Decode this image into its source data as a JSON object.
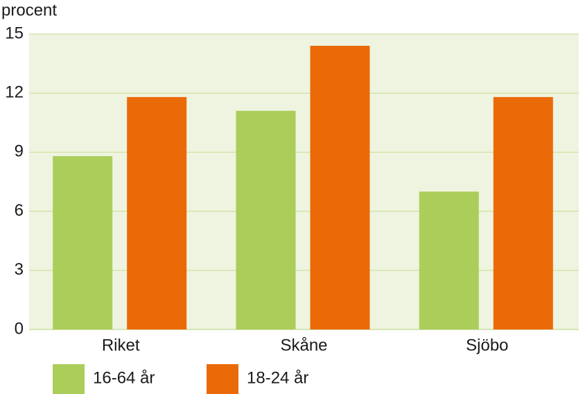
{
  "chart_data": {
    "type": "bar",
    "y_label": "procent",
    "categories": [
      "Riket",
      "Skåne",
      "Sjöbo"
    ],
    "series": [
      {
        "name": "16-64 år",
        "color": "#abcd5a",
        "values": [
          8.8,
          11.1,
          7.0
        ]
      },
      {
        "name": "18-24 år",
        "color": "#ea6a08",
        "values": [
          11.8,
          14.4,
          11.8
        ]
      }
    ],
    "ylim": [
      0,
      15
    ],
    "yticks": [
      0,
      3,
      6,
      9,
      12,
      15
    ],
    "grid": true,
    "legend": "bottom"
  }
}
